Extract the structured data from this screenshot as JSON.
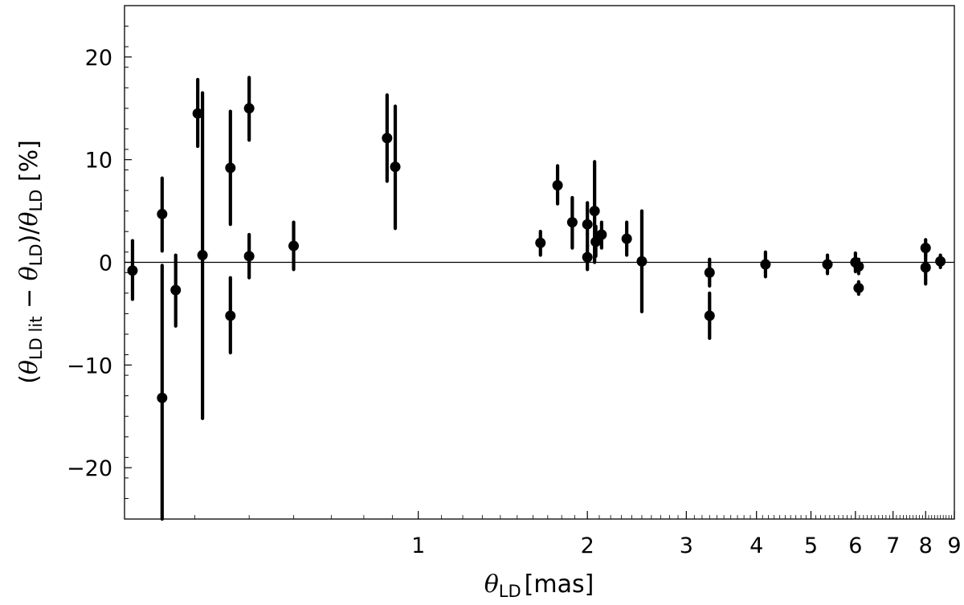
{
  "chart_data": {
    "type": "scatter",
    "title": "",
    "x_scale": "log",
    "x_unit": "mas",
    "xlim": [
      0.3,
      9
    ],
    "ylim": [
      -25,
      25
    ],
    "grid": false,
    "legend": "none",
    "x_ticks": [
      {
        "value": 1,
        "label": "1"
      },
      {
        "value": 2,
        "label": "2"
      },
      {
        "value": 3,
        "label": "3"
      },
      {
        "value": 4,
        "label": "4"
      },
      {
        "value": 5,
        "label": "5"
      },
      {
        "value": 6,
        "label": "6"
      },
      {
        "value": 7,
        "label": "7"
      },
      {
        "value": 8,
        "label": "8"
      },
      {
        "value": 9,
        "label": "9"
      }
    ],
    "y_ticks": [
      {
        "value": 20,
        "label": "20"
      },
      {
        "value": 10,
        "label": "10"
      },
      {
        "value": 0,
        "label": "0"
      },
      {
        "value": -10,
        "label": "−10"
      },
      {
        "value": -20,
        "label": "−20"
      }
    ],
    "xlabel": {
      "symbol": "θ",
      "sub": "LD",
      "unit": "[mas]"
    },
    "ylabel": {
      "open": "(",
      "symbol": "θ",
      "sub1": "LD lit",
      "minus": " − ",
      "sub2": "LD",
      "mid": ")/",
      "sub3": "LD",
      "unit": " [%]"
    },
    "reference_line": {
      "y": 0
    },
    "marker_color": "#000000",
    "points": [
      {
        "x": 0.31,
        "y": -0.8,
        "yerr_low": 2.8,
        "yerr_high": 2.9
      },
      {
        "x": 0.35,
        "y": 4.7,
        "yerr_low": 3.6,
        "yerr_high": 3.5
      },
      {
        "x": 0.35,
        "y": -13.2,
        "yerr_low": 12.0,
        "yerr_high": 12.9
      },
      {
        "x": 0.37,
        "y": -2.7,
        "yerr_low": 3.5,
        "yerr_high": 3.4
      },
      {
        "x": 0.405,
        "y": 14.5,
        "yerr_low": 3.2,
        "yerr_high": 3.3
      },
      {
        "x": 0.413,
        "y": 0.7,
        "yerr_low": 15.9,
        "yerr_high": 15.8
      },
      {
        "x": 0.463,
        "y": 9.2,
        "yerr_low": 5.5,
        "yerr_high": 5.5
      },
      {
        "x": 0.463,
        "y": -5.2,
        "yerr_low": 3.6,
        "yerr_high": 3.7
      },
      {
        "x": 0.5,
        "y": 15.0,
        "yerr_low": 3.1,
        "yerr_high": 3.0
      },
      {
        "x": 0.5,
        "y": 0.6,
        "yerr_low": 2.1,
        "yerr_high": 2.1
      },
      {
        "x": 0.6,
        "y": 1.6,
        "yerr_low": 2.3,
        "yerr_high": 2.3
      },
      {
        "x": 0.88,
        "y": 12.1,
        "yerr_low": 4.2,
        "yerr_high": 4.2
      },
      {
        "x": 0.91,
        "y": 9.3,
        "yerr_low": 6.0,
        "yerr_high": 5.9
      },
      {
        "x": 1.65,
        "y": 1.9,
        "yerr_low": 1.2,
        "yerr_high": 1.1
      },
      {
        "x": 1.77,
        "y": 7.5,
        "yerr_low": 1.8,
        "yerr_high": 1.9
      },
      {
        "x": 1.88,
        "y": 3.9,
        "yerr_low": 2.5,
        "yerr_high": 2.4
      },
      {
        "x": 2.0,
        "y": 3.7,
        "yerr_low": 2.1,
        "yerr_high": 2.1
      },
      {
        "x": 2.0,
        "y": 0.5,
        "yerr_low": 1.2,
        "yerr_high": 1.2
      },
      {
        "x": 2.06,
        "y": 5.0,
        "yerr_low": 5.0,
        "yerr_high": 4.8
      },
      {
        "x": 2.07,
        "y": 2.0,
        "yerr_low": 1.4,
        "yerr_high": 1.5
      },
      {
        "x": 2.12,
        "y": 2.7,
        "yerr_low": 1.3,
        "yerr_high": 1.2
      },
      {
        "x": 2.35,
        "y": 2.3,
        "yerr_low": 1.6,
        "yerr_high": 1.6
      },
      {
        "x": 2.5,
        "y": 0.1,
        "yerr_low": 4.9,
        "yerr_high": 4.9
      },
      {
        "x": 3.3,
        "y": -1.0,
        "yerr_low": 1.3,
        "yerr_high": 1.3
      },
      {
        "x": 3.3,
        "y": -5.2,
        "yerr_low": 2.2,
        "yerr_high": 2.2
      },
      {
        "x": 4.15,
        "y": -0.2,
        "yerr_low": 1.2,
        "yerr_high": 1.2
      },
      {
        "x": 5.35,
        "y": -0.2,
        "yerr_low": 0.9,
        "yerr_high": 0.9
      },
      {
        "x": 6.0,
        "y": 0.0,
        "yerr_low": 0.9,
        "yerr_high": 0.9
      },
      {
        "x": 6.08,
        "y": -0.4,
        "yerr_low": 0.7,
        "yerr_high": 0.7
      },
      {
        "x": 6.08,
        "y": -2.5,
        "yerr_low": 0.6,
        "yerr_high": 0.6
      },
      {
        "x": 8.0,
        "y": 1.4,
        "yerr_low": 0.8,
        "yerr_high": 0.8
      },
      {
        "x": 8.0,
        "y": -0.5,
        "yerr_low": 1.6,
        "yerr_high": 1.6
      },
      {
        "x": 8.5,
        "y": 0.1,
        "yerr_low": 0.6,
        "yerr_high": 0.6
      }
    ]
  }
}
